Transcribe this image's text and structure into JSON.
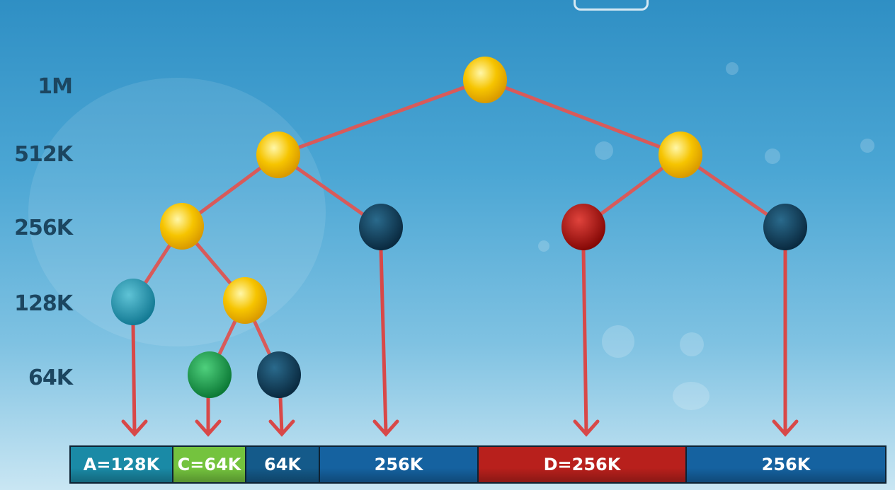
{
  "levels": [
    {
      "label": "1M"
    },
    {
      "label": "512K"
    },
    {
      "label": "256K"
    },
    {
      "label": "128K"
    },
    {
      "label": "64K"
    }
  ],
  "colors": {
    "allocated_node": "#f6c400",
    "free_node": "#0f3b56",
    "block_a_node": "#1a8fa8",
    "block_c_node": "#17a04d",
    "block_d_node": "#b0100c",
    "edge": "#d85a5a",
    "arrow": "#d84848"
  },
  "memory_bar": {
    "segments": [
      {
        "label": "A=128K",
        "color": "#1a8aa6",
        "size_k": 128
      },
      {
        "label": "C=64K",
        "color": "#74c33e",
        "size_k": 64
      },
      {
        "label": "64K",
        "color": "#145a8a",
        "size_k": 64
      },
      {
        "label": "256K",
        "color": "#1562a0",
        "size_k": 256
      },
      {
        "label": "D=256K",
        "color": "#b8201c",
        "size_k": 256
      },
      {
        "label": "256K",
        "color": "#1562a0",
        "size_k": 256
      }
    ]
  }
}
